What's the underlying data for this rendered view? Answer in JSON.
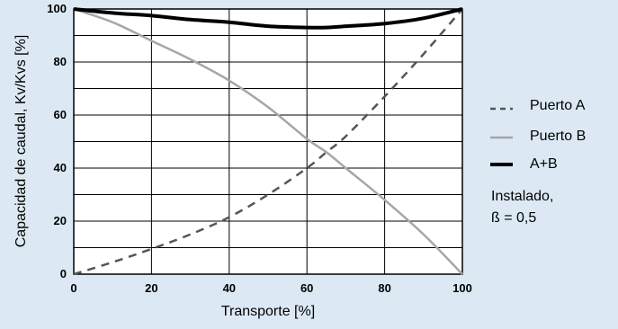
{
  "chart_data": {
    "type": "line",
    "xlabel": "Transporte [%]",
    "ylabel": "Capacidad de caudal, Kv/Kvs [%]",
    "xlim": [
      0,
      100
    ],
    "ylim": [
      0,
      100
    ],
    "x_ticks": [
      "0",
      "20",
      "40",
      "60",
      "80",
      "100"
    ],
    "y_ticks": [
      "0",
      "20",
      "40",
      "60",
      "80",
      "100"
    ],
    "grid": true,
    "legend_placement": "right",
    "series": [
      {
        "name": "Puerto A",
        "style": "dashed",
        "color": "#555555",
        "x": [
          0,
          10,
          20,
          30,
          40,
          50,
          60,
          65,
          70,
          80,
          90,
          100
        ],
        "y": [
          0,
          4.5,
          9.5,
          15,
          21.5,
          30,
          40,
          46,
          52,
          67,
          83,
          100
        ]
      },
      {
        "name": "Puerto B",
        "style": "solid",
        "color": "#a6a6a6",
        "x": [
          0,
          10,
          20,
          30,
          40,
          50,
          60,
          65,
          70,
          80,
          90,
          100
        ],
        "y": [
          100,
          95,
          88,
          81,
          73,
          63,
          51,
          46,
          40,
          28,
          15,
          0
        ]
      },
      {
        "name": "A+B",
        "style": "solid",
        "color": "#000000",
        "x": [
          0,
          10,
          20,
          30,
          40,
          50,
          60,
          65,
          70,
          80,
          90,
          100
        ],
        "y": [
          100,
          98.5,
          97.5,
          96,
          95,
          93.5,
          93,
          93,
          93.5,
          94.5,
          96.5,
          100
        ]
      }
    ],
    "annotation": {
      "line1": "Instalado,",
      "line2": "ß = 0,5"
    }
  }
}
